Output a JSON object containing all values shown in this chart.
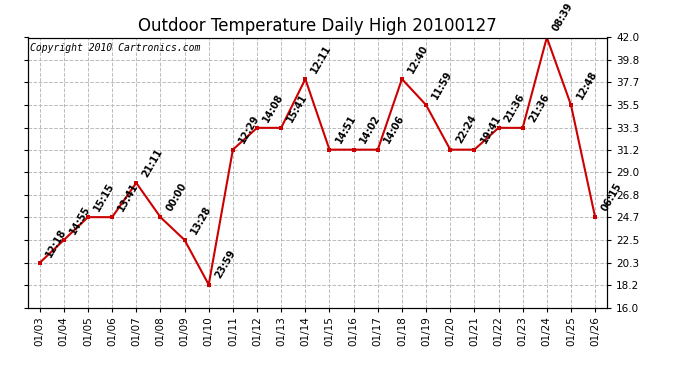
{
  "title": "Outdoor Temperature Daily High 20100127",
  "copyright": "Copyright 2010 Cartronics.com",
  "dates": [
    "01/03",
    "01/04",
    "01/05",
    "01/06",
    "01/07",
    "01/08",
    "01/09",
    "01/10",
    "01/11",
    "01/12",
    "01/13",
    "01/14",
    "01/15",
    "01/16",
    "01/17",
    "01/18",
    "01/19",
    "01/20",
    "01/21",
    "01/22",
    "01/23",
    "01/24",
    "01/25",
    "01/26"
  ],
  "values": [
    20.3,
    22.5,
    24.7,
    24.7,
    28.0,
    24.7,
    22.5,
    18.2,
    31.2,
    33.3,
    33.3,
    38.0,
    31.2,
    31.2,
    31.2,
    38.0,
    35.5,
    31.2,
    31.2,
    33.3,
    33.3,
    42.0,
    35.5,
    24.7
  ],
  "point_labels": [
    "12:18",
    "14:55",
    "15:15",
    "13:41",
    "21:11",
    "00:00",
    "13:28",
    "23:59",
    "12:29",
    "14:08",
    "15:41",
    "12:11",
    "14:51",
    "14:02",
    "14:06",
    "12:40",
    "11:59",
    "22:24",
    "19:41",
    "21:36",
    "21:36",
    "08:39",
    "12:48",
    "06:15"
  ],
  "line_color": "#cc0000",
  "marker_color": "#cc0000",
  "bg_color": "#ffffff",
  "grid_color": "#bbbbbb",
  "ylim": [
    16.0,
    42.0
  ],
  "yticks": [
    16.0,
    18.2,
    20.3,
    22.5,
    24.7,
    26.8,
    29.0,
    31.2,
    33.3,
    35.5,
    37.7,
    39.8,
    42.0
  ],
  "title_fontsize": 12,
  "label_fontsize": 7,
  "copyright_fontsize": 7,
  "tick_fontsize": 7.5
}
